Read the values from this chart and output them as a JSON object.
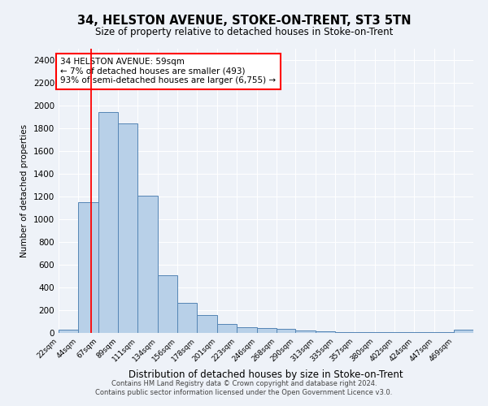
{
  "title": "34, HELSTON AVENUE, STOKE-ON-TRENT, ST3 5TN",
  "subtitle": "Size of property relative to detached houses in Stoke-on-Trent",
  "xlabel": "Distribution of detached houses by size in Stoke-on-Trent",
  "ylabel": "Number of detached properties",
  "footer_line1": "Contains HM Land Registry data © Crown copyright and database right 2024.",
  "footer_line2": "Contains public sector information licensed under the Open Government Licence v3.0.",
  "bar_labels": [
    "22sqm",
    "44sqm",
    "67sqm",
    "89sqm",
    "111sqm",
    "134sqm",
    "156sqm",
    "178sqm",
    "201sqm",
    "223sqm",
    "246sqm",
    "268sqm",
    "290sqm",
    "313sqm",
    "335sqm",
    "357sqm",
    "380sqm",
    "402sqm",
    "424sqm",
    "447sqm",
    "469sqm"
  ],
  "bar_values": [
    30,
    1150,
    1940,
    1840,
    1210,
    510,
    265,
    155,
    80,
    50,
    40,
    35,
    20,
    15,
    10,
    8,
    6,
    5,
    4,
    4,
    30
  ],
  "bar_color": "#b8d0e8",
  "bar_edge_color": "#5585b5",
  "ylim": [
    0,
    2500
  ],
  "yticks": [
    0,
    200,
    400,
    600,
    800,
    1000,
    1200,
    1400,
    1600,
    1800,
    2000,
    2200,
    2400
  ],
  "red_line_x": 59,
  "bin_edges": [
    22,
    44,
    67,
    89,
    111,
    134,
    156,
    178,
    201,
    223,
    246,
    268,
    290,
    313,
    335,
    357,
    380,
    402,
    424,
    447,
    469,
    491
  ],
  "annotation_text": "34 HELSTON AVENUE: 59sqm\n← 7% of detached houses are smaller (493)\n93% of semi-detached houses are larger (6,755) →",
  "annotation_box_color": "white",
  "annotation_box_edge": "red",
  "bg_color": "#eef2f8",
  "grid_color": "white"
}
